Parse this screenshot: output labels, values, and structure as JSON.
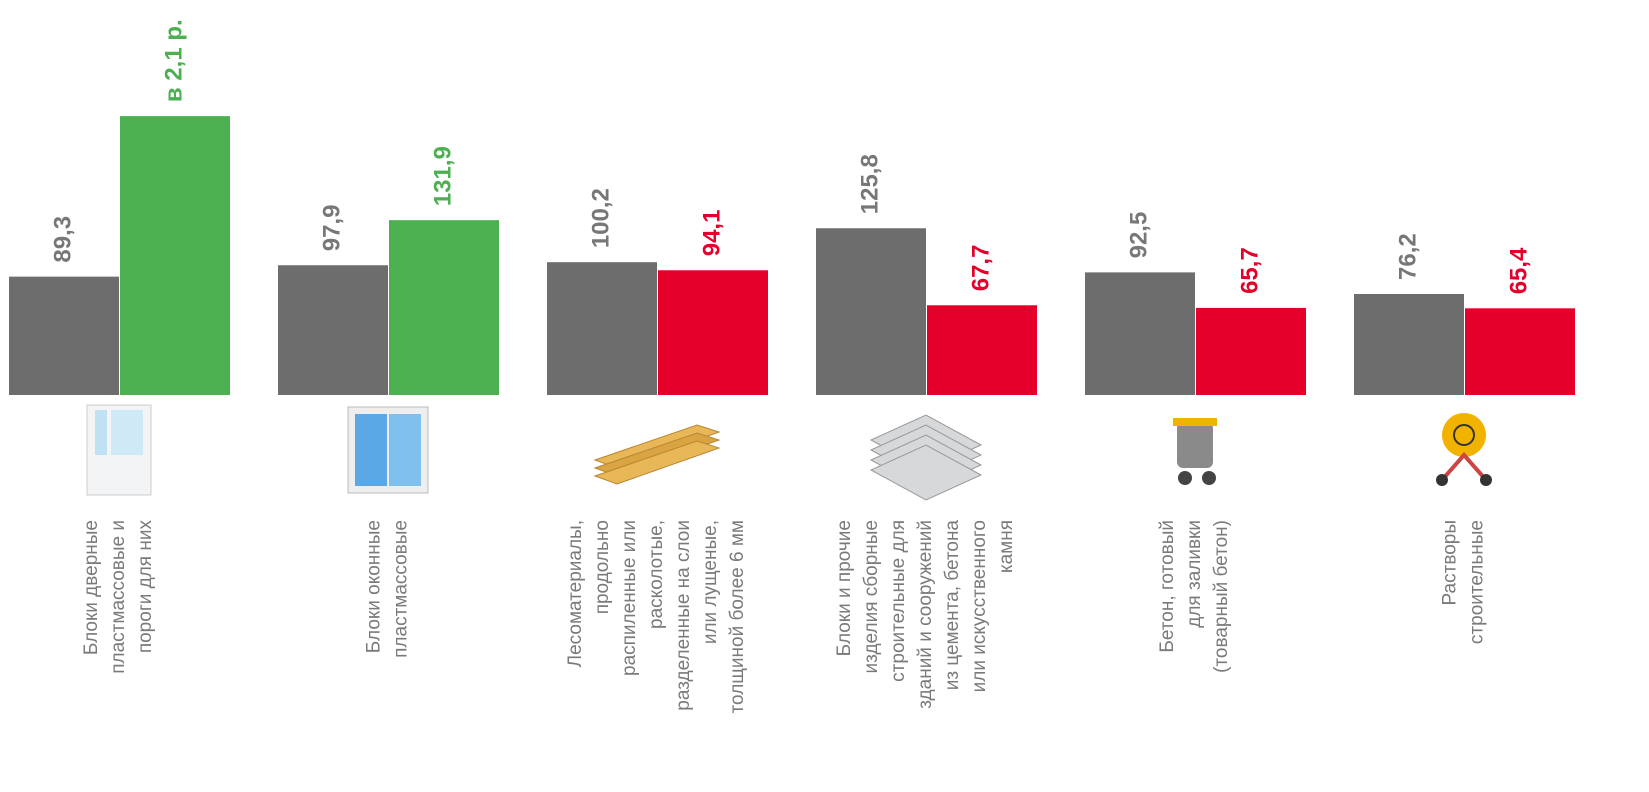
{
  "chart_data": {
    "type": "bar",
    "categories": [
      [
        "Блоки дверные",
        "пластмассовые и",
        "пороги для них"
      ],
      [
        "Блоки оконные",
        "пластмассовые"
      ],
      [
        "Лесоматериалы,",
        "продольно",
        "распиленные или",
        "расколотые,",
        "разделенные на слои",
        "или    лущеные,",
        "толщиной более 6 мм"
      ],
      [
        "Блоки и прочие",
        "изделия сборные",
        "строительные для",
        "зданий и сооружений",
        "из цемента, бетона",
        "или искусственного",
        "камня"
      ],
      [
        "Бетон, готовый",
        "для заливки",
        "(товарный бетон)"
      ],
      [
        "Растворы",
        "строительные"
      ]
    ],
    "series": [
      {
        "color": "#6d6d6d",
        "values": [
          89.3,
          97.9,
          100.2,
          125.8,
          92.5,
          76.2
        ],
        "value_labels": [
          "89,3",
          "97,9",
          "100,2",
          "125,8",
          "92,5",
          "76,2"
        ]
      },
      {
        "colors": [
          "#4caf50",
          "#4caf50",
          "#e4002b",
          "#e4002b",
          "#e4002b",
          "#e4002b"
        ],
        "values": [
          210.4,
          131.9,
          94.1,
          67.7,
          65.7,
          65.4
        ],
        "value_labels": [
          "в 2,1 р.",
          "131,9",
          "94,1",
          "67,7",
          "65,7",
          "65,4"
        ]
      }
    ],
    "ylim": [
      0,
      298
    ]
  }
}
